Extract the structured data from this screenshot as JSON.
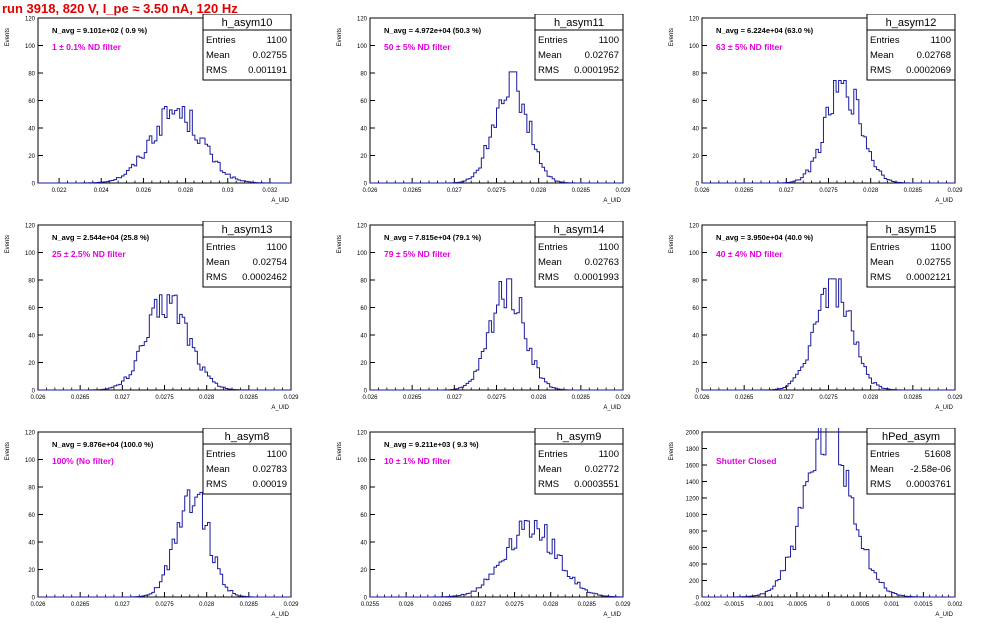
{
  "header": {
    "title": "run 3918,   820 V, I_pe ≈ 3.50 nA, 120 Hz"
  },
  "colors": {
    "histogram": "#1a1aa0",
    "filter_label": "#e000e0",
    "title": "#e00000",
    "axis": "#000000"
  },
  "chart_data": [
    {
      "type": "bar",
      "name": "h_asym10",
      "navg": "N_avg = 9.101e+02 ( 0.9 %)",
      "filter": "1 ± 0.1% ND filter",
      "stats": {
        "Entries": "1100",
        "Mean": "0.02755",
        "RMS": "0.001191"
      },
      "xlabel": "A_UID",
      "ylabel": "Events",
      "xlim": [
        0.021,
        0.033
      ],
      "ylim": [
        0,
        120
      ],
      "xticks": [
        "0.022",
        "0.024",
        "0.026",
        "0.028",
        "0.03",
        "0.032"
      ],
      "yticks": [
        "0",
        "20",
        "40",
        "60",
        "80",
        "100",
        "120"
      ],
      "peak_center": 0.02755,
      "width": 0.00119,
      "peak": 53
    },
    {
      "type": "bar",
      "name": "h_asym11",
      "navg": "N_avg = 4.972e+04 (50.3 %)",
      "filter": "50 ± 5% ND filter",
      "stats": {
        "Entries": "1100",
        "Mean": "0.02767",
        "RMS": "0.0001952"
      },
      "xlabel": "A_UID",
      "ylabel": "Events",
      "xlim": [
        0.026,
        0.029
      ],
      "ylim": [
        0,
        120
      ],
      "xticks": [
        "0.026",
        "0.0265",
        "0.027",
        "0.0275",
        "0.028",
        "0.0285",
        "0.029"
      ],
      "yticks": [
        "0",
        "20",
        "40",
        "60",
        "80",
        "100",
        "120"
      ],
      "peak_center": 0.02767,
      "width": 0.000195,
      "peak": 77
    },
    {
      "type": "bar",
      "name": "h_asym12",
      "navg": "N_avg = 6.224e+04 (63.0 %)",
      "filter": "63 ± 5% ND filter",
      "stats": {
        "Entries": "1100",
        "Mean": "0.02768",
        "RMS": "0.0002069"
      },
      "xlabel": "A_UID",
      "ylabel": "Events",
      "xlim": [
        0.026,
        0.029
      ],
      "ylim": [
        0,
        120
      ],
      "xticks": [
        "0.026",
        "0.0265",
        "0.027",
        "0.0275",
        "0.028",
        "0.0285",
        "0.029"
      ],
      "yticks": [
        "0",
        "20",
        "40",
        "60",
        "80",
        "100",
        "120"
      ],
      "peak_center": 0.02768,
      "width": 0.000207,
      "peak": 71
    },
    {
      "type": "bar",
      "name": "h_asym13",
      "navg": "N_avg = 2.544e+04 (25.8 %)",
      "filter": "25 ± 2.5% ND filter",
      "stats": {
        "Entries": "1100",
        "Mean": "0.02754",
        "RMS": "0.0002462"
      },
      "xlabel": "A_UID",
      "ylabel": "Events",
      "xlim": [
        0.026,
        0.029
      ],
      "ylim": [
        0,
        120
      ],
      "xticks": [
        "0.026",
        "0.0265",
        "0.027",
        "0.0275",
        "0.028",
        "0.0285",
        "0.029"
      ],
      "yticks": [
        "0",
        "20",
        "40",
        "60",
        "80",
        "100",
        "120"
      ],
      "peak_center": 0.02754,
      "width": 0.000246,
      "peak": 66
    },
    {
      "type": "bar",
      "name": "h_asym14",
      "navg": "N_avg = 7.815e+04 (79.1 %)",
      "filter": "79 ± 5% ND filter",
      "stats": {
        "Entries": "1100",
        "Mean": "0.02763",
        "RMS": "0.0001993"
      },
      "xlabel": "A_UID",
      "ylabel": "Events",
      "xlim": [
        0.026,
        0.029
      ],
      "ylim": [
        0,
        120
      ],
      "xticks": [
        "0.026",
        "0.0265",
        "0.027",
        "0.0275",
        "0.028",
        "0.0285",
        "0.029"
      ],
      "yticks": [
        "0",
        "20",
        "40",
        "60",
        "80",
        "100",
        "120"
      ],
      "peak_center": 0.02763,
      "width": 0.000199,
      "peak": 77
    },
    {
      "type": "bar",
      "name": "h_asym15",
      "navg": "N_avg = 3.950e+04 (40.0 %)",
      "filter": "40 ± 4% ND filter",
      "stats": {
        "Entries": "1100",
        "Mean": "0.02755",
        "RMS": "0.0002121"
      },
      "xlabel": "A_UID",
      "ylabel": "Events",
      "xlim": [
        0.026,
        0.029
      ],
      "ylim": [
        0,
        120
      ],
      "xticks": [
        "0.026",
        "0.0265",
        "0.027",
        "0.0275",
        "0.028",
        "0.0285",
        "0.029"
      ],
      "yticks": [
        "0",
        "20",
        "40",
        "60",
        "80",
        "100",
        "120"
      ],
      "peak_center": 0.02755,
      "width": 0.000212,
      "peak": 77
    },
    {
      "type": "bar",
      "name": "h_asym8",
      "navg": "N_avg = 9.876e+04 (100.0 %)",
      "filter": "100% (No filter)",
      "stats": {
        "Entries": "1100",
        "Mean": "0.02783",
        "RMS": "0.00019"
      },
      "xlabel": "A_UID",
      "ylabel": "Events",
      "xlim": [
        0.026,
        0.029
      ],
      "ylim": [
        0,
        120
      ],
      "xticks": [
        "0.026",
        "0.0265",
        "0.027",
        "0.0275",
        "0.028",
        "0.0285",
        "0.029"
      ],
      "yticks": [
        "0",
        "20",
        "40",
        "60",
        "80",
        "100",
        "120"
      ],
      "peak_center": 0.02783,
      "width": 0.00019,
      "peak": 78
    },
    {
      "type": "bar",
      "name": "h_asym9",
      "navg": "N_avg = 9.211e+03 ( 9.3 %)",
      "filter": "10 ± 1% ND filter",
      "stats": {
        "Entries": "1100",
        "Mean": "0.02772",
        "RMS": "0.0003551"
      },
      "xlabel": "A_UID",
      "ylabel": "Events",
      "xlim": [
        0.0255,
        0.029
      ],
      "ylim": [
        0,
        120
      ],
      "xticks": [
        "0.0255",
        "0.026",
        "0.0265",
        "0.027",
        "0.0275",
        "0.028",
        "0.0285",
        "0.029"
      ],
      "yticks": [
        "0",
        "20",
        "40",
        "60",
        "80",
        "100",
        "120"
      ],
      "peak_center": 0.02772,
      "width": 0.000355,
      "peak": 53
    },
    {
      "type": "bar",
      "name": "hPed_asym",
      "navg": "",
      "filter": "Shutter Closed",
      "stats": {
        "Entries": "51608",
        "Mean": "-2.58e-06",
        "RMS": "0.0003761"
      },
      "xlabel": "A_UID",
      "ylabel": "Events",
      "xlim": [
        -0.002,
        0.002
      ],
      "ylim": [
        0,
        2000
      ],
      "xticks": [
        "-0.002",
        "-0.0015",
        "-0.001",
        "-0.0005",
        "0",
        "0.0005",
        "0.001",
        "0.0015",
        "0.002"
      ],
      "yticks": [
        "0",
        "200",
        "400",
        "600",
        "800",
        "1000",
        "1200",
        "1400",
        "1600",
        "1800",
        "2000"
      ],
      "peak_center": 0.0,
      "width": 0.000376,
      "peak": 1960
    }
  ]
}
